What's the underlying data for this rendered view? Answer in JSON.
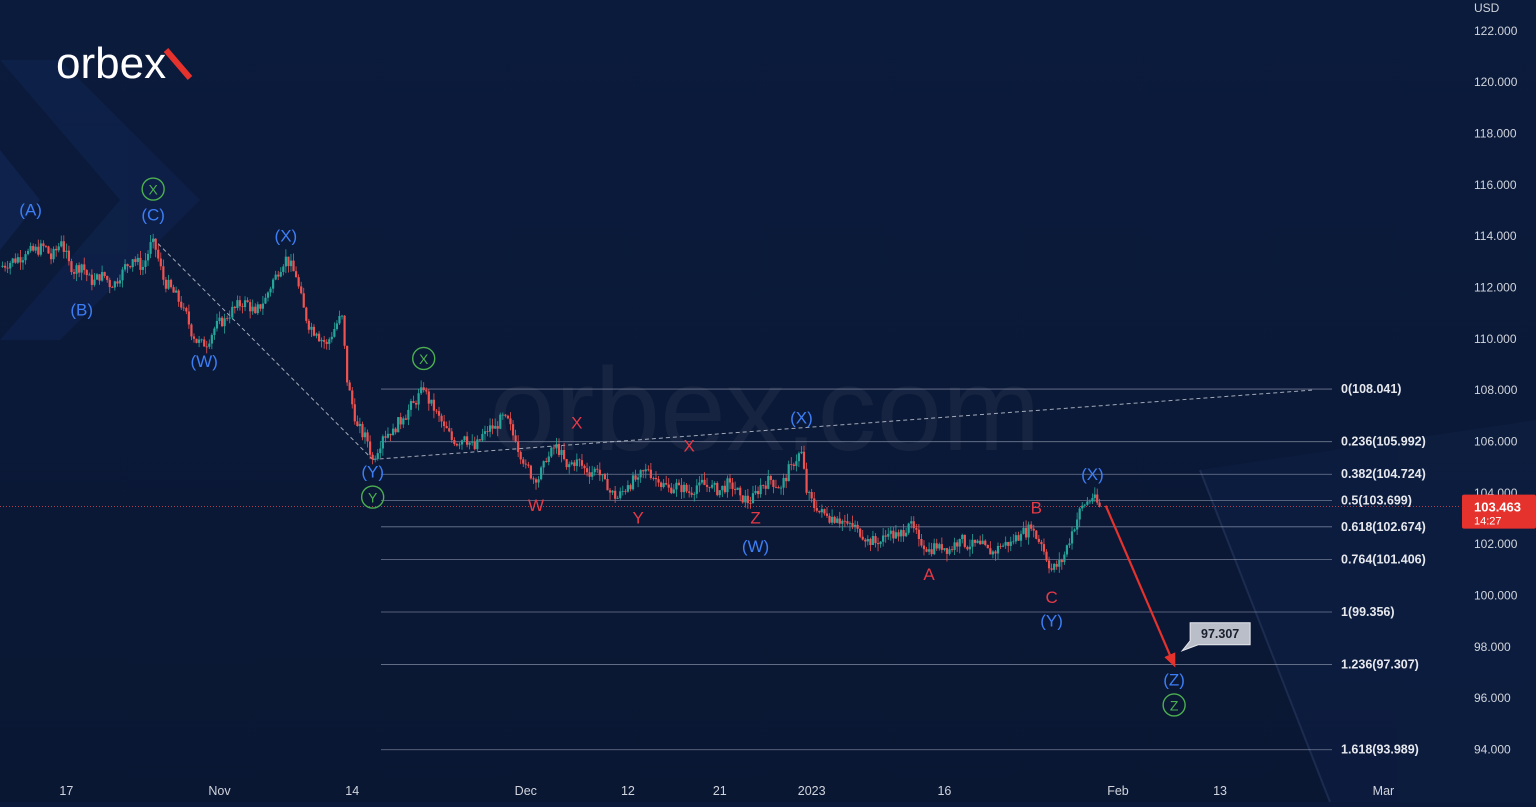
{
  "brand": {
    "logo_text": "orbex",
    "watermark_text": "orbex.com"
  },
  "colors": {
    "background": "#0b1a3a",
    "candle_up": "#26a69a",
    "candle_down": "#ef5350",
    "wave_blue": "#3d7ef5",
    "wave_red": "#e53946",
    "wave_green": "#4caf50",
    "forecast_arrow": "#e5322d",
    "fib_line": "#9aa3b8",
    "axis_text": "#d1d4dc",
    "price_tag": "#e5322d"
  },
  "chart_data": {
    "type": "line",
    "title": "",
    "currency": "USD",
    "ylim": [
      93.2,
      123.2
    ],
    "y_ticks": [
      "94.000",
      "96.000",
      "98.000",
      "100.000",
      "102.000",
      "104.000",
      "106.000",
      "108.000",
      "110.000",
      "112.000",
      "114.000",
      "116.000",
      "118.000",
      "120.000",
      "122.000"
    ],
    "y_tick_values": [
      94,
      96,
      98,
      100,
      102,
      104,
      106,
      108,
      110,
      112,
      114,
      116,
      118,
      120,
      122
    ],
    "x_ticks": [
      {
        "label": "17",
        "x": 0
      },
      {
        "label": "Nov",
        "x": 15
      },
      {
        "label": "14",
        "x": 28
      },
      {
        "label": "Dec",
        "x": 45
      },
      {
        "label": "12",
        "x": 55
      },
      {
        "label": "21",
        "x": 64
      },
      {
        "label": "2023",
        "x": 73
      },
      {
        "label": "16",
        "x": 86
      },
      {
        "label": "Feb",
        "x": 103
      },
      {
        "label": "13",
        "x": 113
      },
      {
        "label": "Mar",
        "x": 129
      }
    ],
    "xlim": [
      -6.5,
      136.5
    ],
    "price_path": [
      [
        -6.5,
        112.8
      ],
      [
        -4,
        113.3
      ],
      [
        -2,
        113.6
      ],
      [
        -1.5,
        113.1
      ],
      [
        -0.5,
        113.8
      ],
      [
        0.5,
        112.6
      ],
      [
        1.5,
        112.9
      ],
      [
        2.5,
        112.1
      ],
      [
        3.5,
        112.6
      ],
      [
        4.5,
        112.0
      ],
      [
        5.5,
        112.7
      ],
      [
        6.5,
        113.1
      ],
      [
        7.5,
        112.8
      ],
      [
        8.5,
        113.9
      ],
      [
        9.5,
        112.3
      ],
      [
        10.5,
        111.8
      ],
      [
        11.5,
        111.2
      ],
      [
        12.5,
        110.0
      ],
      [
        13.5,
        109.7
      ],
      [
        14.5,
        110.4
      ],
      [
        15.5,
        110.8
      ],
      [
        16.5,
        111.2
      ],
      [
        17.5,
        111.5
      ],
      [
        18.5,
        111.0
      ],
      [
        19.5,
        111.6
      ],
      [
        20.5,
        112.5
      ],
      [
        21.5,
        113.2
      ],
      [
        22.5,
        112.4
      ],
      [
        23.5,
        110.7
      ],
      [
        24.5,
        110.2
      ],
      [
        25.5,
        109.8
      ],
      [
        26.5,
        110.6
      ],
      [
        27,
        110.9
      ],
      [
        27.5,
        108.3
      ],
      [
        28.5,
        106.6
      ],
      [
        29.5,
        106.0
      ],
      [
        30,
        105.3
      ],
      [
        31,
        106.2
      ],
      [
        32,
        106.5
      ],
      [
        33,
        106.9
      ],
      [
        34,
        107.5
      ],
      [
        35,
        108.0
      ],
      [
        36,
        107.2
      ],
      [
        37,
        106.6
      ],
      [
        38,
        105.9
      ],
      [
        39,
        106.2
      ],
      [
        40,
        105.7
      ],
      [
        41,
        106.4
      ],
      [
        42,
        106.6
      ],
      [
        43,
        107.0
      ],
      [
        44,
        106.0
      ],
      [
        45,
        105.1
      ],
      [
        46,
        104.4
      ],
      [
        47,
        105.2
      ],
      [
        48,
        105.9
      ],
      [
        49,
        105.0
      ],
      [
        50,
        105.3
      ],
      [
        51,
        104.8
      ],
      [
        52,
        104.9
      ],
      [
        53,
        104.1
      ],
      [
        54,
        103.8
      ],
      [
        55,
        104.3
      ],
      [
        56,
        104.6
      ],
      [
        57,
        104.9
      ],
      [
        58,
        104.4
      ],
      [
        59,
        104.2
      ],
      [
        60,
        104.3
      ],
      [
        61,
        104.0
      ],
      [
        62,
        104.4
      ],
      [
        63,
        104.2
      ],
      [
        64,
        104.1
      ],
      [
        65,
        104.4
      ],
      [
        66,
        103.9
      ],
      [
        67,
        103.6
      ],
      [
        68,
        104.3
      ],
      [
        69,
        104.5
      ],
      [
        70,
        104.2
      ],
      [
        71,
        105.1
      ],
      [
        72,
        105.6
      ],
      [
        72.5,
        104.0
      ],
      [
        73.5,
        103.3
      ],
      [
        74.5,
        103.1
      ],
      [
        75.5,
        103.0
      ],
      [
        76.5,
        102.8
      ],
      [
        77.5,
        102.6
      ],
      [
        78.5,
        102.2
      ],
      [
        79.5,
        102.0
      ],
      [
        80.5,
        102.4
      ],
      [
        81.5,
        102.3
      ],
      [
        82.5,
        102.8
      ],
      [
        83.5,
        102.2
      ],
      [
        84.5,
        101.8
      ],
      [
        85.5,
        102.0
      ],
      [
        86.5,
        101.8
      ],
      [
        87.5,
        102.2
      ],
      [
        88.5,
        101.9
      ],
      [
        89.5,
        102.0
      ],
      [
        90.5,
        101.6
      ],
      [
        91.5,
        101.9
      ],
      [
        92.5,
        102.1
      ],
      [
        93.5,
        102.4
      ],
      [
        94.5,
        102.6
      ],
      [
        95.5,
        102.0
      ],
      [
        96.5,
        101.0
      ],
      [
        97.5,
        101.3
      ],
      [
        98.5,
        102.5
      ],
      [
        99.5,
        103.5
      ],
      [
        100.5,
        103.8
      ],
      [
        101.2,
        103.46
      ]
    ],
    "current_price": {
      "label": "103.463",
      "value": 103.463,
      "countdown": "14:27"
    },
    "fibonacci_levels": [
      {
        "label": "0(108.041)",
        "value": 108.041
      },
      {
        "label": "0.236(105.992)",
        "value": 105.992
      },
      {
        "label": "0.382(104.724)",
        "value": 104.724
      },
      {
        "label": "0.5(103.699)",
        "value": 103.699
      },
      {
        "label": "0.618(102.674)",
        "value": 102.674
      },
      {
        "label": "0.764(101.406)",
        "value": 101.406
      },
      {
        "label": "1(99.356)",
        "value": 99.356
      },
      {
        "label": "1.236(97.307)",
        "value": 97.307
      },
      {
        "label": "1.618(93.989)",
        "value": 93.989
      }
    ],
    "forecast": {
      "target_label": "97.307",
      "from": [
        101.8,
        103.5
      ],
      "to": [
        108.5,
        97.3
      ]
    },
    "trend_lines": [
      {
        "from": [
          8.5,
          113.9
        ],
        "to": [
          30,
          105.3
        ]
      },
      {
        "from": [
          30,
          105.3
        ],
        "to": [
          122,
          108.0
        ]
      }
    ],
    "wave_labels": [
      {
        "text": "(A)",
        "color": "blue",
        "x": -3.5,
        "y": 114.8
      },
      {
        "text": "(B)",
        "color": "blue",
        "x": 1.5,
        "y": 110.9
      },
      {
        "text": "(C)",
        "color": "blue",
        "x": 8.5,
        "y": 114.6
      },
      {
        "text": "X",
        "color": "green",
        "circled": true,
        "x": 8.5,
        "y": 115.6
      },
      {
        "text": "(W)",
        "color": "blue",
        "x": 13.5,
        "y": 108.9
      },
      {
        "text": "(X)",
        "color": "blue",
        "x": 21.5,
        "y": 113.8
      },
      {
        "text": "X",
        "color": "green",
        "circled": true,
        "x": 35,
        "y": 109.0
      },
      {
        "text": "(Y)",
        "color": "blue",
        "x": 30,
        "y": 104.6
      },
      {
        "text": "Y",
        "color": "green",
        "circled": true,
        "x": 30,
        "y": 103.6
      },
      {
        "text": "W",
        "color": "red",
        "x": 46,
        "y": 103.3
      },
      {
        "text": "X",
        "color": "red",
        "x": 50,
        "y": 106.5
      },
      {
        "text": "Y",
        "color": "red",
        "x": 56,
        "y": 102.8
      },
      {
        "text": "X",
        "color": "red",
        "x": 61,
        "y": 105.6
      },
      {
        "text": "Z",
        "color": "red",
        "x": 67.5,
        "y": 102.8
      },
      {
        "text": "(W)",
        "color": "blue",
        "x": 67.5,
        "y": 101.7
      },
      {
        "text": "(X)",
        "color": "blue",
        "x": 72,
        "y": 106.7
      },
      {
        "text": "A",
        "color": "red",
        "x": 84.5,
        "y": 100.6
      },
      {
        "text": "B",
        "color": "red",
        "x": 95,
        "y": 103.2
      },
      {
        "text": "C",
        "color": "red",
        "x": 96.5,
        "y": 99.7
      },
      {
        "text": "(Y)",
        "color": "blue",
        "x": 96.5,
        "y": 98.8
      },
      {
        "text": "(X)",
        "color": "blue",
        "x": 100.5,
        "y": 104.5
      },
      {
        "text": "(Z)",
        "color": "blue",
        "x": 108.5,
        "y": 96.5
      },
      {
        "text": "Z",
        "color": "green",
        "circled": true,
        "x": 108.5,
        "y": 95.5
      }
    ]
  }
}
